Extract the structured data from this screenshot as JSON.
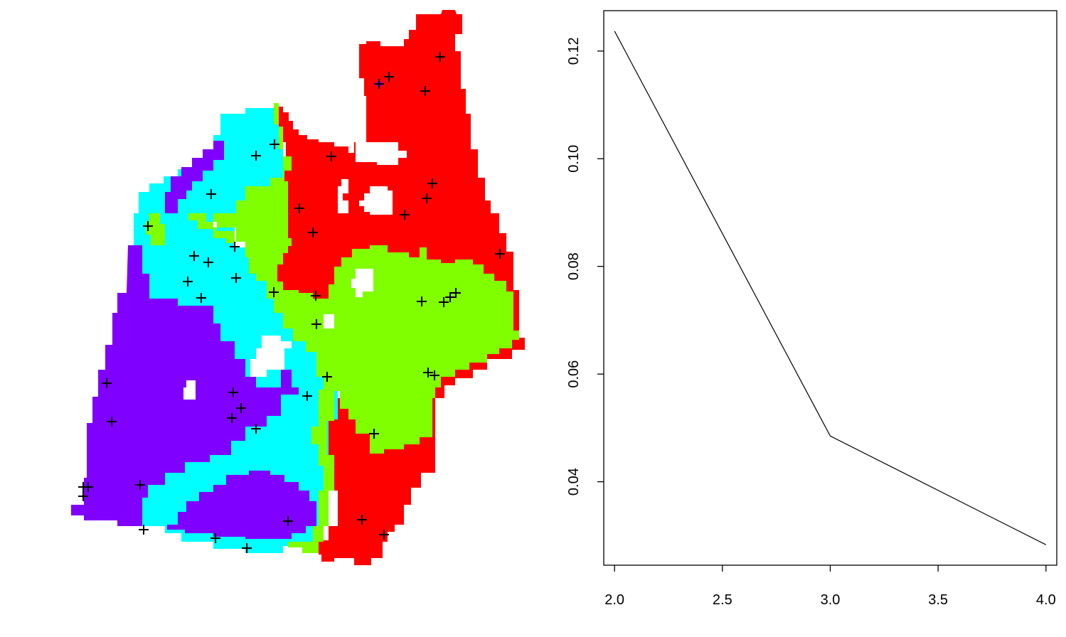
{
  "map_panel": {
    "legend_colors": {
      "cluster-1": "#8000ff",
      "cluster-2": "#00ffff",
      "cluster-3": "#80ff00",
      "cluster-4": "#ff0000"
    },
    "marker_symbol": "+",
    "sample_points": [
      [
        619,
        80
      ],
      [
        547,
        108
      ],
      [
        598,
        128
      ],
      [
        533,
        118
      ],
      [
        466,
        220
      ],
      [
        360,
        219
      ],
      [
        386,
        203
      ],
      [
        297,
        273
      ],
      [
        608,
        258
      ],
      [
        600,
        279
      ],
      [
        569,
        302
      ],
      [
        421,
        293
      ],
      [
        440,
        327
      ],
      [
        208,
        318
      ],
      [
        330,
        347
      ],
      [
        273,
        360
      ],
      [
        293,
        369
      ],
      [
        264,
        396
      ],
      [
        332,
        391
      ],
      [
        283,
        419
      ],
      [
        385,
        411
      ],
      [
        444,
        416
      ],
      [
        593,
        424
      ],
      [
        624,
        425
      ],
      [
        633,
        418
      ],
      [
        641,
        412
      ],
      [
        703,
        357
      ],
      [
        445,
        456
      ],
      [
        150,
        539
      ],
      [
        328,
        552
      ],
      [
        460,
        530
      ],
      [
        602,
        524
      ],
      [
        611,
        528
      ],
      [
        432,
        557
      ],
      [
        339,
        574
      ],
      [
        326,
        588
      ],
      [
        157,
        593
      ],
      [
        360,
        603
      ],
      [
        526,
        610
      ],
      [
        117,
        685
      ],
      [
        124,
        685
      ],
      [
        117,
        698
      ],
      [
        197,
        682
      ],
      [
        405,
        733
      ],
      [
        509,
        731
      ],
      [
        202,
        745
      ],
      [
        303,
        757
      ],
      [
        347,
        771
      ],
      [
        540,
        752
      ]
    ]
  },
  "chart_data": {
    "type": "line",
    "title": "",
    "xlabel": "",
    "ylabel": "",
    "x": [
      2,
      3,
      4
    ],
    "series": [
      {
        "name": "",
        "values": [
          0.1237,
          0.0485,
          0.0283
        ]
      }
    ],
    "xlim": [
      1.95,
      4.05
    ],
    "ylim": [
      0.0245,
      0.1275
    ],
    "xticks": [
      2.0,
      2.5,
      3.0,
      3.5,
      4.0
    ],
    "xtick_labels": [
      "2.0",
      "2.5",
      "3.0",
      "3.5",
      "4.0"
    ],
    "yticks": [
      0.04,
      0.06,
      0.08,
      0.1,
      0.12
    ],
    "ytick_labels": [
      "0.04",
      "0.06",
      "0.08",
      "0.10",
      "0.12"
    ],
    "grid": false,
    "line_color": "#000000"
  }
}
